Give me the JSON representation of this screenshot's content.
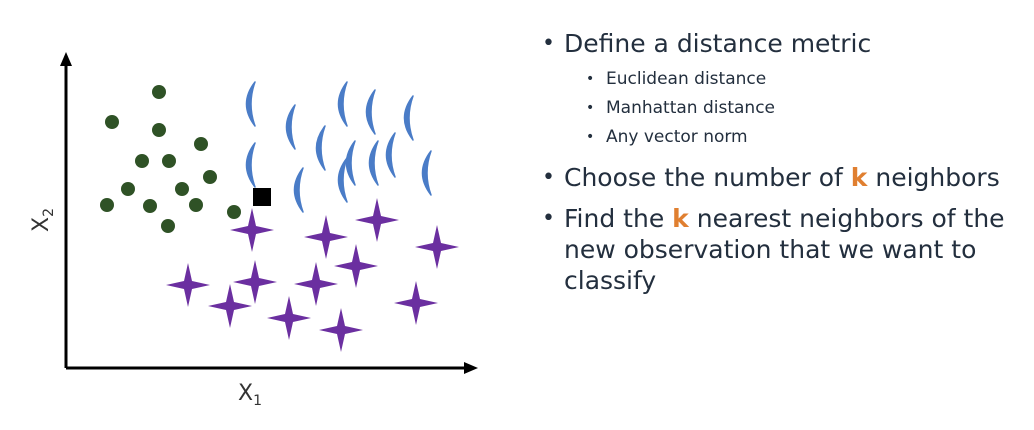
{
  "diagram": {
    "x_axis_label": "X",
    "x_axis_sub": "1",
    "y_axis_label": "X",
    "y_axis_sub": "2",
    "colors": {
      "dot": "#2f5226",
      "crescent": "#4a7cc7",
      "star": "#6b2fa0",
      "query": "#000000",
      "axis": "#000000"
    }
  },
  "bullets": {
    "item1": "Define a distance metric",
    "sub1": "Euclidean distance",
    "sub2": "Manhattan distance",
    "sub3": "Any vector norm",
    "item2_pre": "Choose the number of ",
    "item2_k": "k",
    "item2_post": " neighbors",
    "item3_pre": "Find the ",
    "item3_k": "k",
    "item3_post": " nearest neighbors of the new observation that we want to classify",
    "k_color": "#e07f30"
  }
}
